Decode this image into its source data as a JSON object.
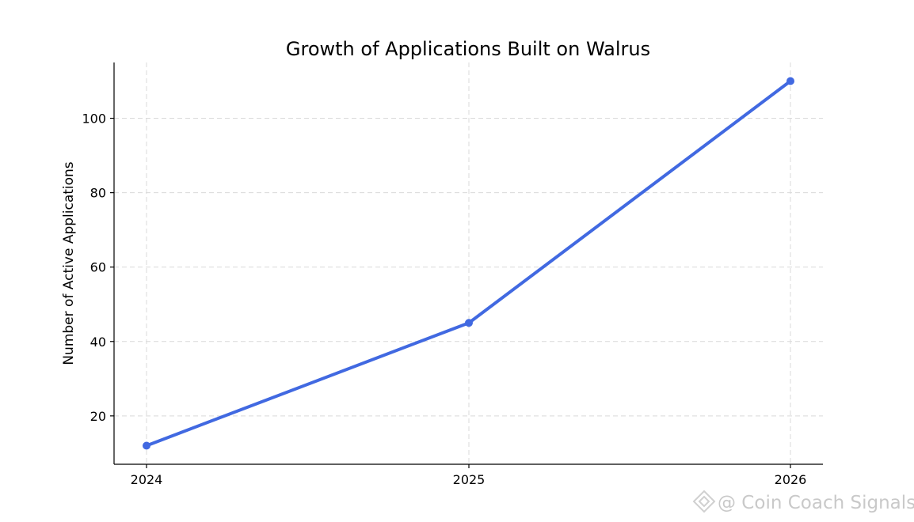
{
  "chart_data": {
    "type": "line",
    "title": "Growth of Applications Built on Walrus",
    "xlabel": "",
    "ylabel": "Number of Active Applications",
    "categories": [
      "2024",
      "2025",
      "2026"
    ],
    "series": [
      {
        "values": [
          12,
          45,
          110
        ],
        "color": "#4169e1",
        "marker": "circle"
      }
    ],
    "ylim": [
      7,
      115
    ],
    "yticks": [
      20,
      40,
      60,
      80,
      100
    ],
    "grid": true
  },
  "watermark": {
    "text": "@ Coin Coach Signals",
    "icon": "binance-diamond-icon"
  }
}
